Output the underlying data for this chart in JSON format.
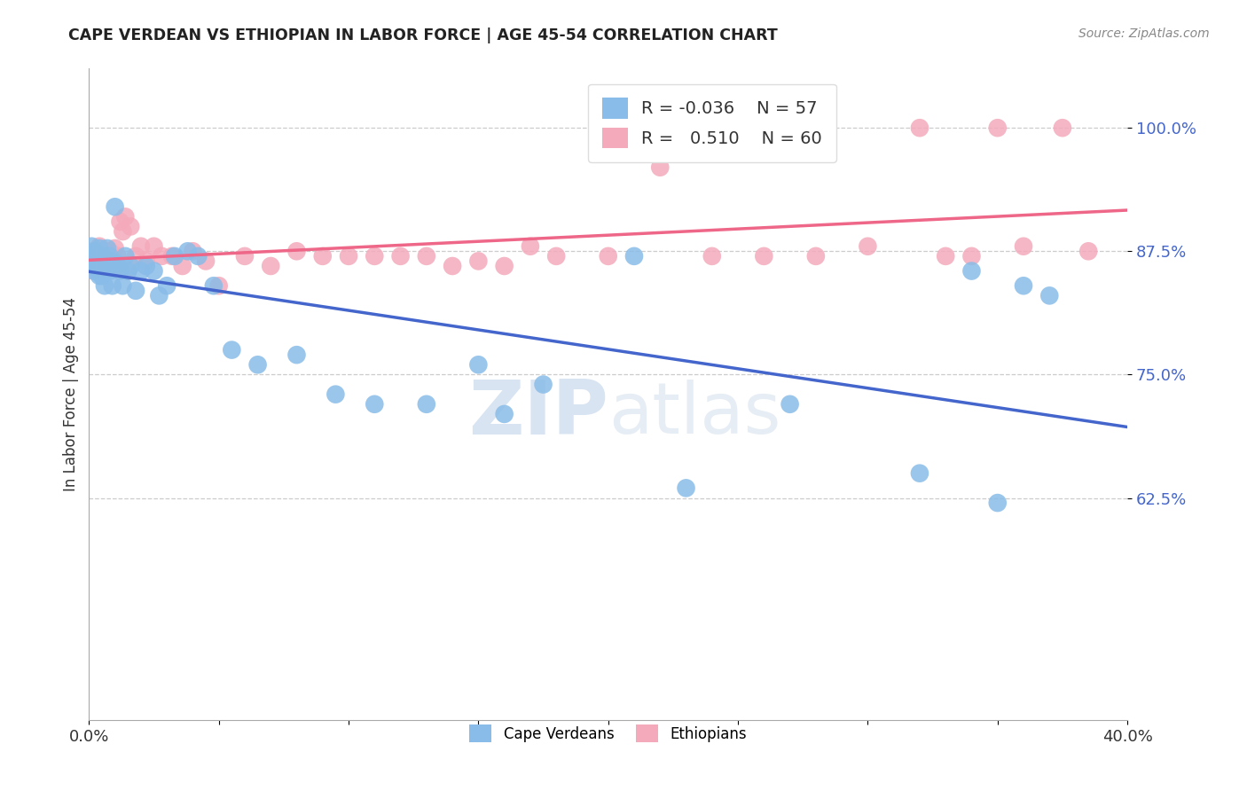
{
  "title": "CAPE VERDEAN VS ETHIOPIAN IN LABOR FORCE | AGE 45-54 CORRELATION CHART",
  "source": "Source: ZipAtlas.com",
  "ylabel": "In Labor Force | Age 45-54",
  "xlim": [
    0.0,
    0.4
  ],
  "ylim": [
    0.4,
    1.06
  ],
  "yticks": [
    0.625,
    0.75,
    0.875,
    1.0
  ],
  "ytick_labels": [
    "62.5%",
    "75.0%",
    "87.5%",
    "100.0%"
  ],
  "xticks": [
    0.0,
    0.05,
    0.1,
    0.15,
    0.2,
    0.25,
    0.3,
    0.35,
    0.4
  ],
  "xtick_labels": [
    "0.0%",
    "",
    "",
    "",
    "",
    "",
    "",
    "",
    "40.0%"
  ],
  "cape_verdean_color": "#89BCE8",
  "ethiopian_color": "#F4AABB",
  "line_blue": "#4466CC",
  "line_pink": "#EE6688",
  "legend_R_cape": "-0.036",
  "legend_N_cape": "57",
  "legend_R_eth": "0.510",
  "legend_N_eth": "60",
  "cape_verdean_x": [
    0.001,
    0.001,
    0.002,
    0.002,
    0.002,
    0.003,
    0.003,
    0.003,
    0.004,
    0.004,
    0.004,
    0.005,
    0.005,
    0.005,
    0.006,
    0.006,
    0.006,
    0.007,
    0.007,
    0.008,
    0.008,
    0.009,
    0.009,
    0.01,
    0.011,
    0.012,
    0.013,
    0.014,
    0.015,
    0.016,
    0.018,
    0.02,
    0.022,
    0.025,
    0.027,
    0.03,
    0.033,
    0.038,
    0.042,
    0.048,
    0.055,
    0.065,
    0.08,
    0.095,
    0.11,
    0.13,
    0.15,
    0.16,
    0.175,
    0.21,
    0.23,
    0.27,
    0.32,
    0.34,
    0.35,
    0.36,
    0.37
  ],
  "cape_verdean_y": [
    0.88,
    0.87,
    0.875,
    0.862,
    0.855,
    0.872,
    0.865,
    0.858,
    0.878,
    0.86,
    0.85,
    0.87,
    0.86,
    0.85,
    0.868,
    0.855,
    0.84,
    0.878,
    0.862,
    0.87,
    0.855,
    0.865,
    0.84,
    0.92,
    0.862,
    0.855,
    0.84,
    0.87,
    0.855,
    0.86,
    0.835,
    0.855,
    0.86,
    0.855,
    0.83,
    0.84,
    0.87,
    0.875,
    0.87,
    0.84,
    0.775,
    0.76,
    0.77,
    0.73,
    0.72,
    0.72,
    0.76,
    0.71,
    0.74,
    0.87,
    0.635,
    0.72,
    0.65,
    0.855,
    0.62,
    0.84,
    0.83
  ],
  "ethiopian_x": [
    0.001,
    0.001,
    0.002,
    0.002,
    0.003,
    0.003,
    0.004,
    0.004,
    0.005,
    0.005,
    0.006,
    0.006,
    0.007,
    0.007,
    0.008,
    0.008,
    0.009,
    0.01,
    0.011,
    0.012,
    0.013,
    0.014,
    0.015,
    0.016,
    0.018,
    0.02,
    0.022,
    0.025,
    0.028,
    0.032,
    0.036,
    0.04,
    0.045,
    0.05,
    0.06,
    0.07,
    0.08,
    0.09,
    0.1,
    0.11,
    0.12,
    0.13,
    0.14,
    0.15,
    0.16,
    0.17,
    0.18,
    0.2,
    0.22,
    0.24,
    0.26,
    0.28,
    0.3,
    0.32,
    0.33,
    0.34,
    0.35,
    0.36,
    0.375,
    0.385
  ],
  "ethiopian_y": [
    0.87,
    0.862,
    0.855,
    0.875,
    0.865,
    0.87,
    0.88,
    0.858,
    0.87,
    0.86,
    0.875,
    0.858,
    0.87,
    0.86,
    0.875,
    0.865,
    0.858,
    0.878,
    0.87,
    0.905,
    0.895,
    0.91,
    0.855,
    0.9,
    0.87,
    0.88,
    0.865,
    0.88,
    0.87,
    0.87,
    0.86,
    0.875,
    0.865,
    0.84,
    0.87,
    0.86,
    0.875,
    0.87,
    0.87,
    0.87,
    0.87,
    0.87,
    0.86,
    0.865,
    0.86,
    0.88,
    0.87,
    0.87,
    0.96,
    0.87,
    0.87,
    0.87,
    0.88,
    1.0,
    0.87,
    0.87,
    1.0,
    0.88,
    1.0,
    0.875
  ]
}
